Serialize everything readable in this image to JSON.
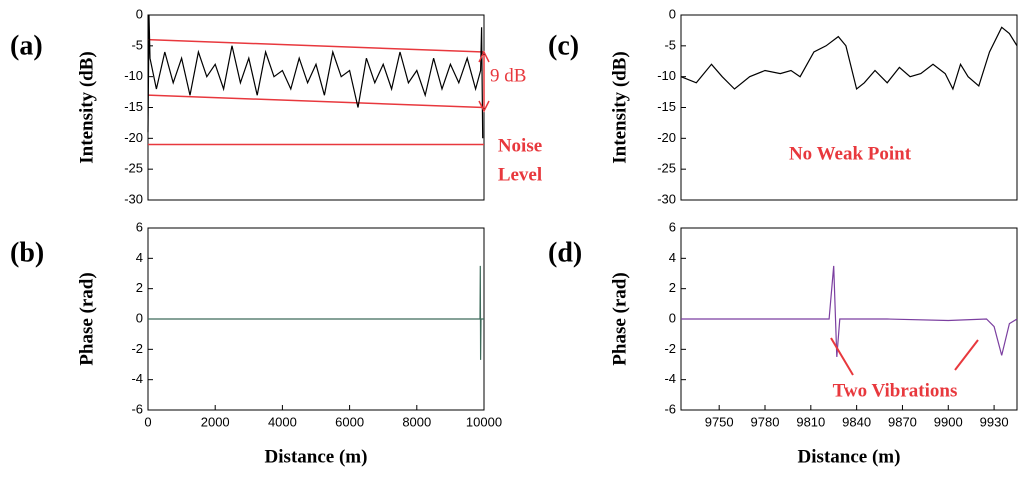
{
  "chart_data": [
    {
      "type": "line",
      "label": "(a)",
      "ylabel": "Intensity (dB)",
      "xlim": [
        0,
        10000
      ],
      "ylim": [
        -30,
        0
      ],
      "yticks": [
        0,
        -5,
        -10,
        -15,
        -20,
        -25,
        -30
      ],
      "x": [
        0,
        30,
        60,
        250,
        500,
        750,
        1000,
        1250,
        1500,
        1750,
        2000,
        2250,
        2500,
        2750,
        3000,
        3250,
        3500,
        3750,
        4000,
        4250,
        4500,
        4750,
        5000,
        5250,
        5500,
        5750,
        6000,
        6250,
        6500,
        6750,
        7000,
        7250,
        7500,
        7750,
        8000,
        8250,
        8500,
        8750,
        9000,
        9250,
        9500,
        9750,
        9900,
        9930,
        9960
      ],
      "values": [
        -19,
        0,
        -7,
        -12,
        -6,
        -11,
        -7,
        -13,
        -6,
        -10,
        -8,
        -12,
        -5,
        -11,
        -7,
        -13,
        -6,
        -10,
        -9,
        -12,
        -7,
        -11,
        -8,
        -13,
        -6,
        -10,
        -9,
        -15,
        -7,
        -11,
        -8,
        -12,
        -6,
        -11,
        -9,
        -13,
        -7,
        -12,
        -8,
        -11,
        -7,
        -12,
        -9,
        -2,
        -20
      ],
      "color": "#000000",
      "reference_color": "#e8383d",
      "reference_lines": [
        {
          "x": [
            0,
            10000
          ],
          "values": [
            -4,
            -6
          ]
        },
        {
          "x": [
            0,
            10000
          ],
          "values": [
            -13,
            -15
          ]
        },
        {
          "x": [
            0,
            10000
          ],
          "values": [
            -21,
            -21
          ]
        }
      ],
      "annotations": [
        "9 dB",
        "Noise",
        "Level"
      ]
    },
    {
      "type": "line",
      "label": "(b)",
      "ylabel": "Phase (rad)",
      "xlabel": "Distance (m)",
      "xlim": [
        0,
        10000
      ],
      "xticks": [
        0,
        2000,
        4000,
        6000,
        8000,
        10000
      ],
      "ylim": [
        -6,
        6
      ],
      "yticks": [
        6,
        4,
        2,
        0,
        -2,
        -4,
        -6
      ],
      "x": [
        0,
        1000,
        2000,
        3000,
        4000,
        5000,
        6000,
        7000,
        8000,
        9000,
        9800,
        9880,
        9890,
        9900,
        9910,
        10000
      ],
      "values": [
        0,
        0,
        0,
        0,
        0,
        0,
        0,
        0,
        0,
        0,
        0,
        0,
        3.5,
        -2.7,
        0,
        0
      ],
      "color": "#3d6b5a"
    },
    {
      "type": "line",
      "label": "(c)",
      "ylabel": "Intensity (dB)",
      "xlim": [
        9725,
        9945
      ],
      "ylim": [
        -30,
        0
      ],
      "yticks": [
        0,
        -5,
        -10,
        -15,
        -20,
        -25,
        -30
      ],
      "x": [
        9725,
        9735,
        9745,
        9752,
        9760,
        9770,
        9780,
        9790,
        9797,
        9803,
        9812,
        9820,
        9828,
        9833,
        9840,
        9845,
        9852,
        9860,
        9868,
        9875,
        9882,
        9890,
        9898,
        9903,
        9908,
        9913,
        9920,
        9927,
        9935,
        9940,
        9945
      ],
      "values": [
        -10,
        -11,
        -8,
        -10,
        -12,
        -10,
        -9,
        -9.5,
        -9,
        -10,
        -6,
        -5,
        -3.5,
        -5,
        -12,
        -11,
        -9,
        -11,
        -8.5,
        -10,
        -9.5,
        -8,
        -9.5,
        -12,
        -8,
        -10,
        -11.5,
        -6,
        -2,
        -3,
        -5
      ],
      "color": "#000000",
      "reference_color": "#e8383d",
      "annotations": [
        "No Weak Point"
      ]
    },
    {
      "type": "line",
      "label": "(d)",
      "ylabel": "Phase (rad)",
      "xlabel": "Distance (m)",
      "xlim": [
        9725,
        9945
      ],
      "xticks": [
        9750,
        9780,
        9810,
        9840,
        9870,
        9900,
        9930
      ],
      "ylim": [
        -6,
        6
      ],
      "yticks": [
        6,
        4,
        2,
        0,
        -2,
        -4,
        -6
      ],
      "x": [
        9725,
        9760,
        9800,
        9822,
        9825,
        9827,
        9829,
        9832,
        9860,
        9900,
        9925,
        9930,
        9935,
        9940,
        9945
      ],
      "values": [
        0,
        0,
        0,
        0,
        3.5,
        -2.5,
        0,
        0,
        0,
        -0.1,
        0,
        -0.5,
        -2.4,
        -0.3,
        0
      ],
      "color": "#7b3fa0",
      "reference_color": "#e8383d",
      "annotations": [
        "Two Vibrations"
      ]
    }
  ]
}
